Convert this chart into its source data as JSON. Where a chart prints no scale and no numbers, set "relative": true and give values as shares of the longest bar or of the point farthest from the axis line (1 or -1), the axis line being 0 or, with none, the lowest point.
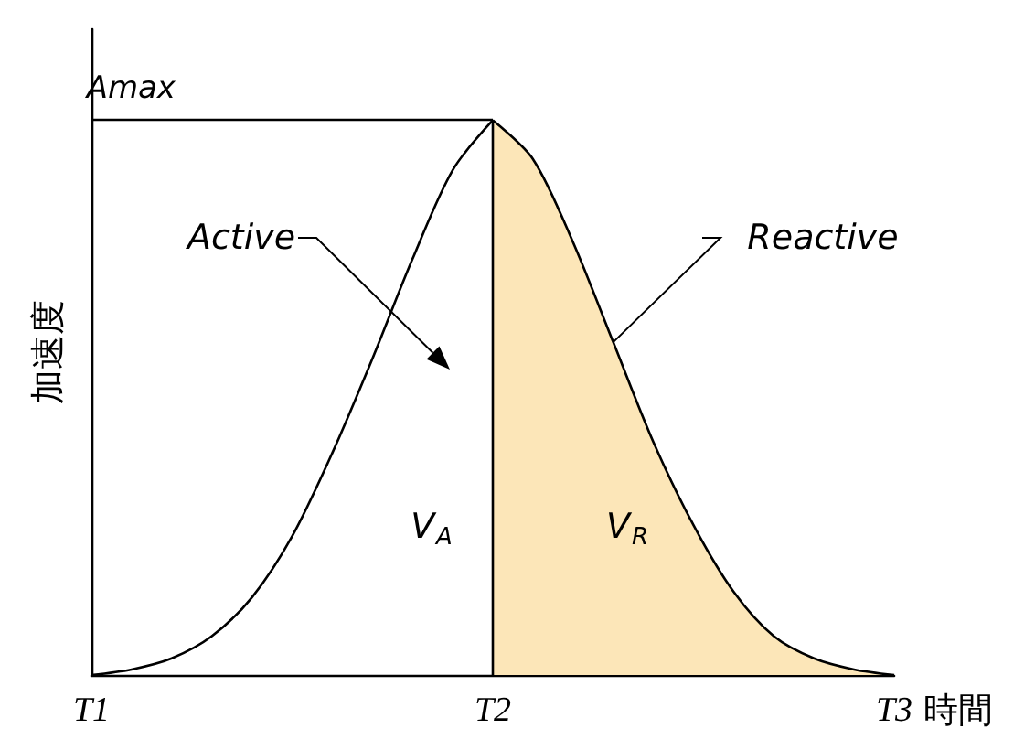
{
  "chart_data": {
    "type": "line",
    "relative": true,
    "xlabel": "時間",
    "ylabel": "加速度",
    "categories": [
      "T1",
      null,
      null,
      null,
      null,
      null,
      null,
      null,
      null,
      null,
      "T2",
      null,
      null,
      null,
      null,
      null,
      null,
      null,
      null,
      null,
      "T3"
    ],
    "series": [
      {
        "color": "#000000",
        "values": [
          0,
          0.01,
          0.03,
          0.07,
          0.14,
          0.25,
          0.4,
          0.57,
          0.75,
          0.91,
          1,
          null,
          null,
          null,
          null,
          null,
          null,
          null,
          null,
          null,
          null
        ]
      },
      {
        "type": "area",
        "color": "#fce6b8",
        "values": [
          null,
          null,
          null,
          null,
          null,
          null,
          null,
          null,
          null,
          null,
          1,
          0.93,
          0.78,
          0.6,
          0.42,
          0.27,
          0.15,
          0.07,
          0.03,
          0.01,
          0
        ]
      }
    ],
    "ref_lines": [
      {
        "axis": "y",
        "value": 1,
        "label": "Amax"
      },
      {
        "axis": "x",
        "value": "T2"
      }
    ],
    "annotations": [
      "Active",
      "Reactive",
      "V$_{A}$",
      "V$_{R}$"
    ],
    "grid": false,
    "marker": "none"
  }
}
